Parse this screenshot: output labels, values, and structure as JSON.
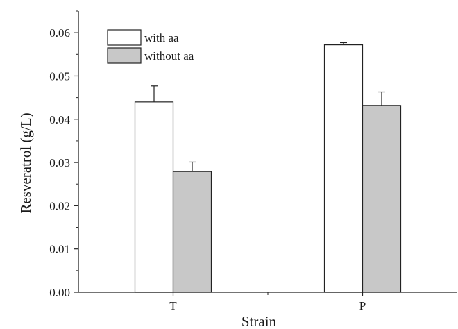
{
  "chart_data": {
    "type": "bar",
    "title": "",
    "xlabel": "Strain",
    "ylabel": "Resveratrol (g/L)",
    "categories": [
      "T",
      "P"
    ],
    "series": [
      {
        "name": "with aa",
        "color": "#ffffff",
        "values": [
          0.044,
          0.0572
        ],
        "errors": [
          0.0037,
          0.0005
        ]
      },
      {
        "name": "without aa",
        "color": "#c8c8c8",
        "values": [
          0.0279,
          0.0432
        ],
        "errors": [
          0.0022,
          0.0031
        ]
      }
    ],
    "ylim": [
      0,
      0.065
    ],
    "yticks": [
      "0.00",
      "0.01",
      "0.02",
      "0.03",
      "0.04",
      "0.05",
      "0.06"
    ],
    "legend_position": "top-left",
    "grid": false
  }
}
